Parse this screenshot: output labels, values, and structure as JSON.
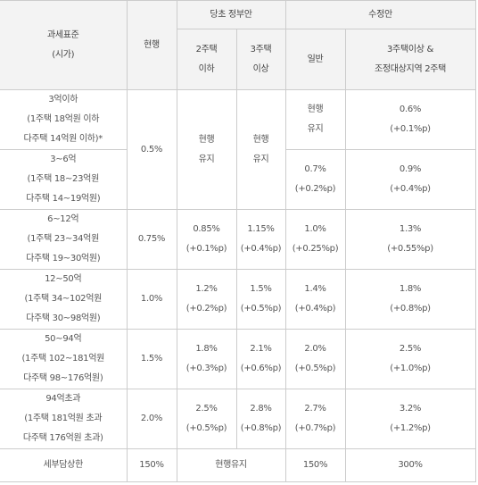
{
  "header": {
    "base_line1": "과세표준",
    "base_line2": "(시가)",
    "current": "현행",
    "govt_plan": "당초 정부안",
    "govt_2below_1": "2주택",
    "govt_2below_2": "이하",
    "govt_3above_1": "3주택",
    "govt_3above_2": "이상",
    "revised": "수정안",
    "rev_general": "일반",
    "rev_3above_1": "3주택이상 &",
    "rev_3above_2": "조정대상지역 2주택"
  },
  "rows": [
    {
      "base": [
        "3억이하",
        "(1주택 18억원 이하",
        "다주택 14억원 이하)*"
      ],
      "rev_general": [
        "현행",
        "유지"
      ],
      "rev_3above": [
        "0.6%",
        "(+0.1%p)"
      ]
    },
    {
      "base": [
        "3~6억",
        "(1주택 18~23억원",
        "다주택 14~19억원)"
      ],
      "rev_general": [
        "0.7%",
        "(+0.2%p)"
      ],
      "rev_3above": [
        "0.9%",
        "(+0.4%p)"
      ]
    },
    {
      "base": [
        "6~12억",
        "(1주택 23~34억원",
        "다주택 19~30억원)"
      ],
      "current": "0.75%",
      "govt_2below": [
        "0.85%",
        "(+0.1%p)"
      ],
      "govt_3above": [
        "1.15%",
        "(+0.4%p)"
      ],
      "rev_general": [
        "1.0%",
        "(+0.25%p)"
      ],
      "rev_3above": [
        "1.3%",
        "(+0.55%p)"
      ]
    },
    {
      "base": [
        "12~50억",
        "(1주택 34~102억원",
        "다주택 30~98억원)"
      ],
      "current": "1.0%",
      "govt_2below": [
        "1.2%",
        "(+0.2%p)"
      ],
      "govt_3above": [
        "1.5%",
        "(+0.5%p)"
      ],
      "rev_general": [
        "1.4%",
        "(+0.4%p)"
      ],
      "rev_3above": [
        "1.8%",
        "(+0.8%p)"
      ]
    },
    {
      "base": [
        "50~94억",
        "(1주택 102~181억원",
        "다주택 98~176억원)"
      ],
      "current": "1.5%",
      "govt_2below": [
        "1.8%",
        "(+0.3%p)"
      ],
      "govt_3above": [
        "2.1%",
        "(+0.6%p)"
      ],
      "rev_general": [
        "2.0%",
        "(+0.5%p)"
      ],
      "rev_3above": [
        "2.5%",
        "(+1.0%p)"
      ]
    },
    {
      "base": [
        "94억초과",
        "(1주택 181억원 초과",
        "다주택 176억원 초과)"
      ],
      "current": "2.0%",
      "govt_2below": [
        "2.5%",
        "(+0.5%p)"
      ],
      "govt_3above": [
        "2.8%",
        "(+0.8%p)"
      ],
      "rev_general": [
        "2.7%",
        "(+0.7%p)"
      ],
      "rev_3above": [
        "3.2%",
        "(+1.2%p)"
      ]
    }
  ],
  "merged": {
    "current_top": "0.5%",
    "govt_2below_top": [
      "현행",
      "유지"
    ],
    "govt_3above_top": [
      "현행",
      "유지"
    ]
  },
  "cap_row": {
    "label": "세부담상한",
    "current": "150%",
    "govt_plan": "현행유지",
    "rev_general": "150%",
    "rev_3above": "300%"
  }
}
